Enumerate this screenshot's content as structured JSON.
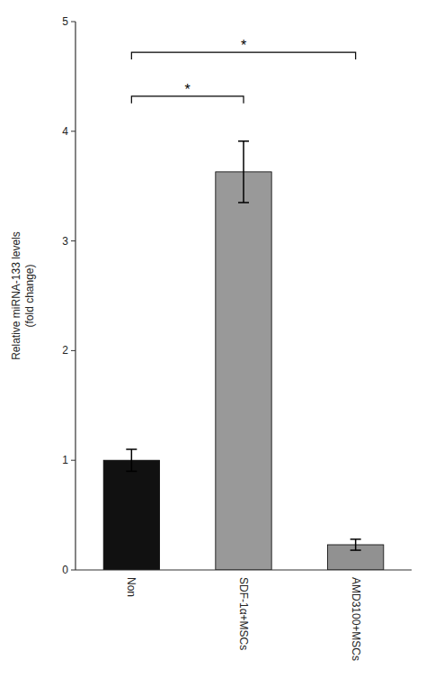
{
  "chart_data": {
    "type": "bar",
    "ylabel": "Relative miRNA-133 levels\n(fold change)",
    "categories": [
      "Non",
      "SDF-1α+MSCs",
      "AMD3100+MSCs"
    ],
    "values": [
      1.0,
      3.63,
      0.23
    ],
    "errors": [
      0.1,
      0.28,
      0.05
    ],
    "colors": [
      "#111111",
      "#999999",
      "#919191"
    ],
    "ylim": [
      0,
      5
    ],
    "yticks": [
      0,
      1,
      2,
      3,
      4,
      5
    ],
    "grid": false,
    "annotations": [
      {
        "from": "Non",
        "to": "SDF-1α+MSCs",
        "y": 4.32,
        "label": "*"
      },
      {
        "from": "Non",
        "to": "AMD3100+MSCs",
        "y": 4.72,
        "label": "*"
      }
    ]
  }
}
